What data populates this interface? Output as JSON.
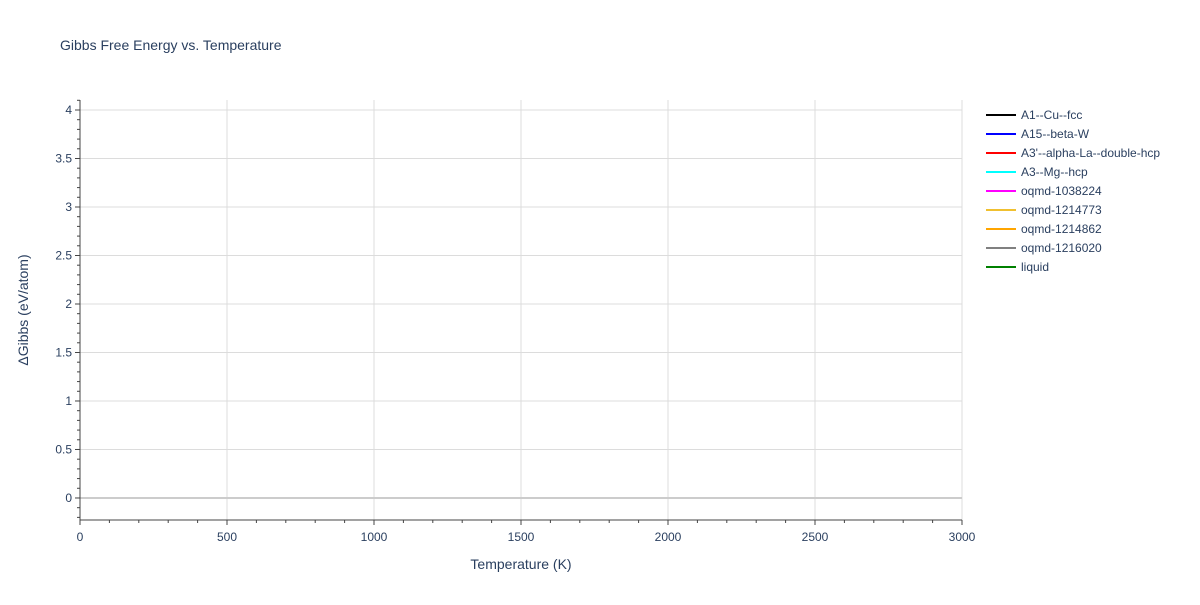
{
  "chart_data": {
    "type": "line",
    "title": "Gibbs Free Energy vs. Temperature",
    "xlabel": "Temperature (K)",
    "ylabel": "ΔGibbs (eV/atom)",
    "xlim": [
      0,
      3000
    ],
    "ylim": [
      -0.227,
      4.103
    ],
    "xticks": [
      0,
      500,
      1000,
      1500,
      2000,
      2500,
      3000
    ],
    "xtick_labels": [
      "0",
      "500",
      "1000",
      "1500",
      "2000",
      "2500",
      "3000"
    ],
    "yticks": [
      0,
      0.5,
      1,
      1.5,
      2,
      2.5,
      3,
      3.5,
      4
    ],
    "ytick_labels": [
      "0",
      "0.5",
      "1",
      "1.5",
      "2",
      "2.5",
      "3",
      "3.5",
      "4"
    ],
    "x_minor_step": 100,
    "y_minor_step": 0.1,
    "grid": true,
    "legend_position": "right",
    "series": [
      {
        "name": "A1--Cu--fcc",
        "color": "#000000",
        "x": [],
        "y": []
      },
      {
        "name": "A15--beta-W",
        "color": "#0000ff",
        "x": [],
        "y": []
      },
      {
        "name": "A3'--alpha-La--double-hcp",
        "color": "#ff0000",
        "x": [],
        "y": []
      },
      {
        "name": "A3--Mg--hcp",
        "color": "#00ffff",
        "x": [],
        "y": []
      },
      {
        "name": "oqmd-1038224",
        "color": "#ff00ff",
        "x": [],
        "y": []
      },
      {
        "name": "oqmd-1214773",
        "color": "#f0c030",
        "x": [],
        "y": []
      },
      {
        "name": "oqmd-1214862",
        "color": "#ffa500",
        "x": [],
        "y": []
      },
      {
        "name": "oqmd-1216020",
        "color": "#808080",
        "x": [],
        "y": []
      },
      {
        "name": "liquid",
        "color": "#008000",
        "x": [],
        "y": []
      }
    ]
  }
}
